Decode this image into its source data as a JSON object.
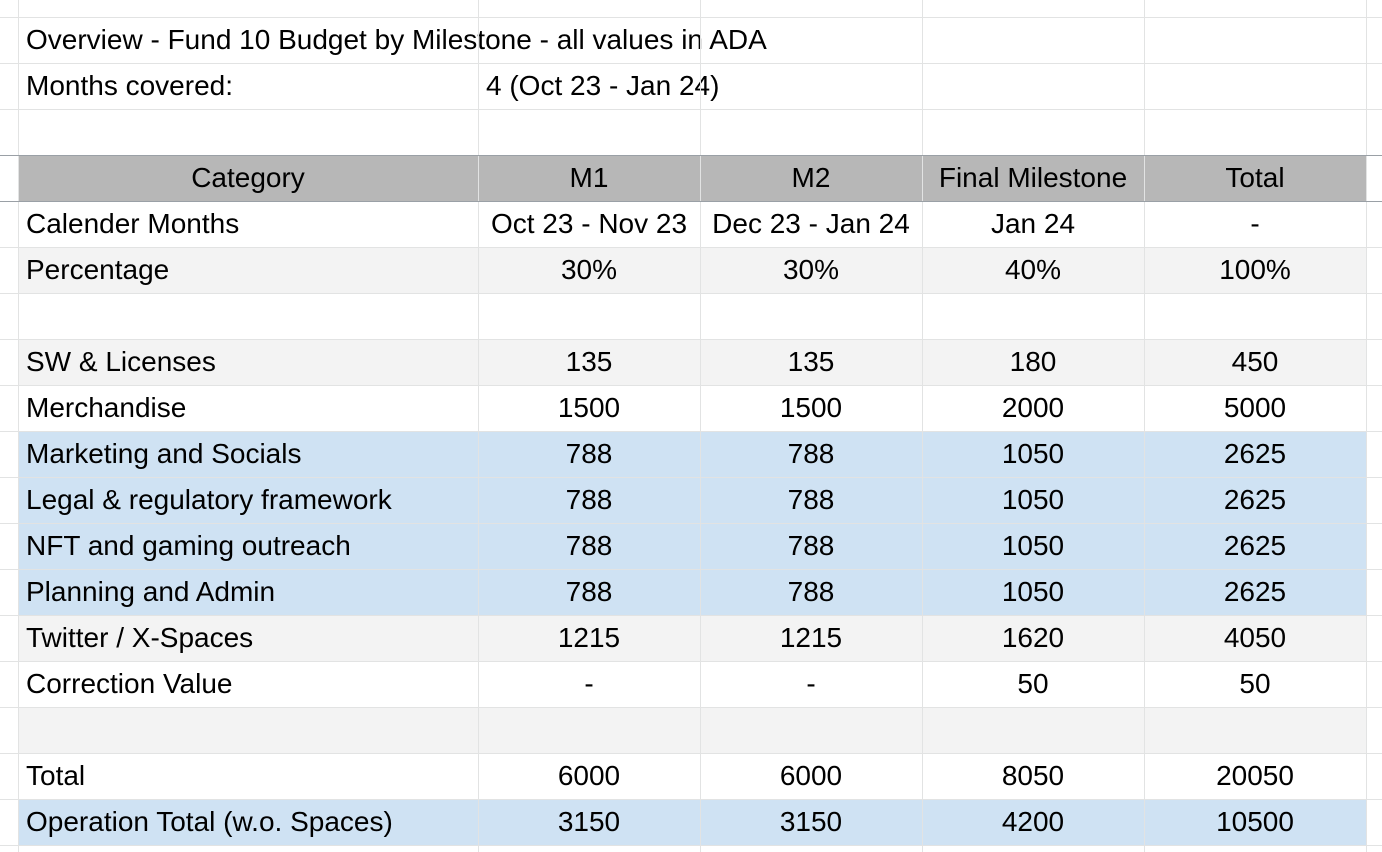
{
  "sheet": {
    "title": "Overview - Fund 10 Budget by Milestone - all values in ADA",
    "months_label": "Months covered:",
    "months_value": "4 (Oct 23 - Jan 24)"
  },
  "header": [
    "Category",
    "M1",
    "M2",
    "Final Milestone",
    "Total"
  ],
  "rows": {
    "calendar": [
      "Calender Months",
      "Oct 23 - Nov 23",
      "Dec 23 - Jan 24",
      "Jan 24",
      "-"
    ],
    "percentage": [
      "Percentage",
      "30%",
      "30%",
      "40%",
      "100%"
    ],
    "sw_licenses": [
      "SW & Licenses",
      "135",
      "135",
      "180",
      "450"
    ],
    "merchandise": [
      "Merchandise",
      "1500",
      "1500",
      "2000",
      "5000"
    ],
    "marketing": [
      "Marketing and Socials",
      "788",
      "788",
      "1050",
      "2625"
    ],
    "legal": [
      "Legal & regulatory framework",
      "788",
      "788",
      "1050",
      "2625"
    ],
    "nft": [
      "NFT and gaming outreach",
      "788",
      "788",
      "1050",
      "2625"
    ],
    "planning": [
      "Planning and Admin",
      "788",
      "788",
      "1050",
      "2625"
    ],
    "twitter": [
      "Twitter / X-Spaces",
      "1215",
      "1215",
      "1620",
      "4050"
    ],
    "correction": [
      "Correction Value",
      "-",
      "-",
      "50",
      "50"
    ],
    "total": [
      "Total",
      "6000",
      "6000",
      "8050",
      "20050"
    ],
    "operation_total": [
      "Operation Total (w.o. Spaces)",
      "3150",
      "3150",
      "4200",
      "10500"
    ]
  },
  "colors": {
    "header_fill": "#b7b7b7",
    "light_gray_fill": "#f3f3f3",
    "light_blue_fill": "#cfe2f3",
    "gridline": "#e2e3e3"
  }
}
